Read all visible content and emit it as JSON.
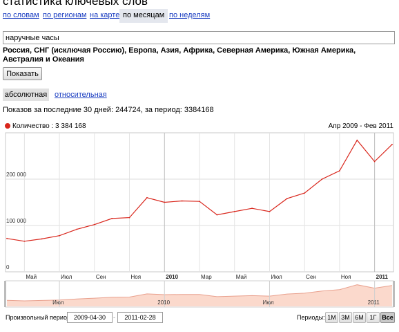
{
  "header": {
    "title": "статистика ключевых слов"
  },
  "tabs": [
    {
      "label": "по словам",
      "active": false
    },
    {
      "label": "по регионам",
      "active": false
    },
    {
      "label": "на карте",
      "active": false
    },
    {
      "label": "по месяцам",
      "active": true
    },
    {
      "label": "по неделям",
      "active": false
    }
  ],
  "search": {
    "value": "наручные часы"
  },
  "regions": {
    "text": "Россия, СНГ (исключая Россию), Европа, Азия, Африка, Северная Америка, Южная Америка, Австралия и Океания"
  },
  "show_button": {
    "label": "Показать"
  },
  "mode_tabs": {
    "absolute": "абсолютная",
    "relative": "относительная"
  },
  "stats": {
    "text": "Показов за последние 30 дней: 244724, за период: 3384168"
  },
  "legend": {
    "text": "Количество : 3 384 168",
    "color": "#d9261c"
  },
  "range": {
    "text": "Апр 2009 - Фев 2011"
  },
  "chart_data": {
    "type": "line",
    "title": "",
    "series": [
      {
        "name": "Количество",
        "color": "#d9261c",
        "x": [
          "2009-04",
          "2009-05",
          "2009-06",
          "2009-07",
          "2009-08",
          "2009-09",
          "2009-10",
          "2009-11",
          "2009-12",
          "2010-01",
          "2010-02",
          "2010-03",
          "2010-04",
          "2010-05",
          "2010-06",
          "2010-07",
          "2010-08",
          "2010-09",
          "2010-10",
          "2010-11",
          "2010-12",
          "2011-01",
          "2011-02"
        ],
        "values": [
          72000,
          66000,
          71000,
          78000,
          92000,
          102000,
          115000,
          117000,
          160000,
          150000,
          153000,
          152000,
          123000,
          130000,
          137000,
          130000,
          158000,
          170000,
          200000,
          218000,
          284000,
          238000,
          275000
        ]
      }
    ],
    "ylim": [
      0,
      300000
    ],
    "y_ticks": [
      {
        "value": 0,
        "label": "0"
      },
      {
        "value": 100000,
        "label": "100 000"
      },
      {
        "value": 200000,
        "label": "200 000"
      }
    ],
    "x_ticks": [
      {
        "x": "2009-05",
        "label": "Май",
        "bold": false
      },
      {
        "x": "2009-07",
        "label": "Июл",
        "bold": false
      },
      {
        "x": "2009-09",
        "label": "Сен",
        "bold": false
      },
      {
        "x": "2009-11",
        "label": "Ноя",
        "bold": false
      },
      {
        "x": "2010-01",
        "label": "2010",
        "bold": true
      },
      {
        "x": "2010-03",
        "label": "Мар",
        "bold": false
      },
      {
        "x": "2010-05",
        "label": "Май",
        "bold": false
      },
      {
        "x": "2010-07",
        "label": "Июл",
        "bold": false
      },
      {
        "x": "2010-09",
        "label": "Сен",
        "bold": false
      },
      {
        "x": "2010-11",
        "label": "Ноя",
        "bold": false
      },
      {
        "x": "2011-01",
        "label": "2011",
        "bold": true
      }
    ],
    "grid": true,
    "legend": "top-left"
  },
  "navigator": {
    "labels": [
      {
        "x": "2009-07",
        "label": "Июл"
      },
      {
        "x": "2010-01",
        "label": "2010"
      },
      {
        "x": "2010-07",
        "label": "Июл"
      },
      {
        "x": "2011-01",
        "label": "2011"
      }
    ],
    "fill_color": "#fbd9cc",
    "line_color": "#e9a08d"
  },
  "period": {
    "label": "Произвольный период:",
    "from": "2009-04-30",
    "to": "2011-02-28",
    "separator": "-",
    "periods_label": "Периоды:",
    "buttons": [
      {
        "label": "1М",
        "active": false
      },
      {
        "label": "3М",
        "active": false
      },
      {
        "label": "6М",
        "active": false
      },
      {
        "label": "1Г",
        "active": false
      },
      {
        "label": "Все",
        "active": true
      }
    ]
  }
}
